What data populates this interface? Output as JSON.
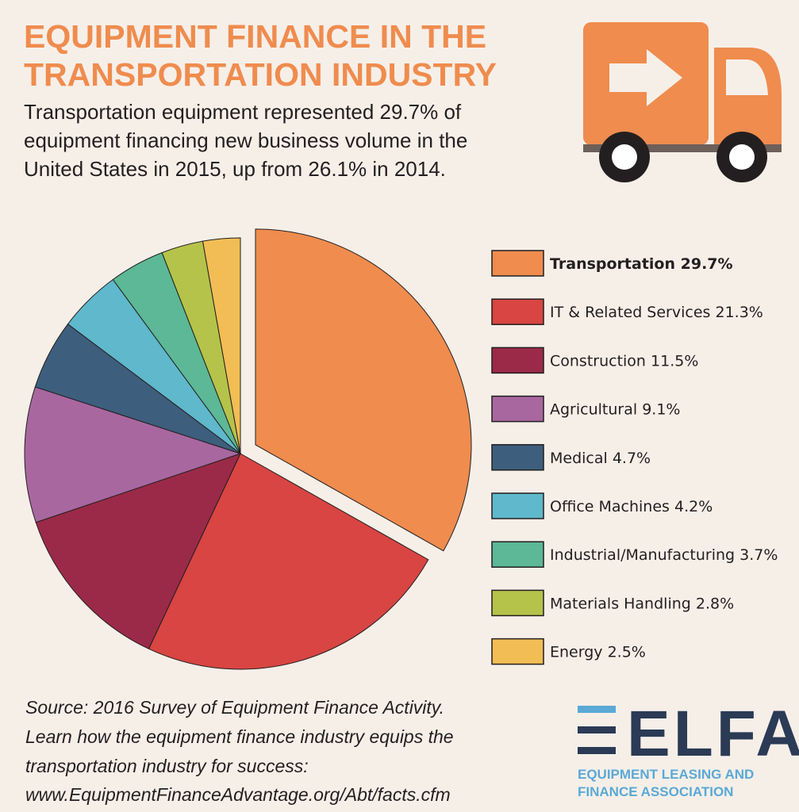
{
  "chart_data": {
    "type": "pie",
    "title": [
      "EQUIPMENT FINANCE IN THE",
      "TRANSPORTATION INDUSTRY"
    ],
    "subtitle": [
      "Transportation equipment represented 29.7% of",
      "equipment financing new business volume in the",
      "United States in 2015, up from 26.1% in 2014."
    ],
    "categories": [
      "Transportation",
      "IT & Related Services",
      "Construction",
      "Agricultural",
      "Medical",
      "Office Machines",
      "Industrial/Manufacturing",
      "Materials Handling",
      "Energy"
    ],
    "values": [
      29.7,
      21.3,
      11.5,
      9.1,
      4.7,
      4.2,
      3.7,
      2.8,
      2.5
    ],
    "value_labels": [
      "29.7%",
      "21.3%",
      "11.5%",
      "9.1%",
      "4.7%",
      "4.2%",
      "3.7%",
      "2.8%",
      "2.5%"
    ],
    "colors": [
      "#ef8c4e",
      "#d84542",
      "#9b2a48",
      "#a9679f",
      "#3d5f7d",
      "#5fb8cb",
      "#5cb896",
      "#b5c34a",
      "#f2bd55"
    ],
    "exploded": [
      0
    ],
    "source": [
      "Source: 2016 Survey of Equipment Finance Activity.",
      "Learn how the equipment finance industry equips the",
      "transportation industry for success:",
      "www.EquipmentFinanceAdvantage.org/Abt/facts.cfm"
    ],
    "logo": {
      "name": "ELFA",
      "lines": [
        "EQUIPMENT LEASING AND",
        "FINANCE ASSOCIATION"
      ]
    }
  }
}
